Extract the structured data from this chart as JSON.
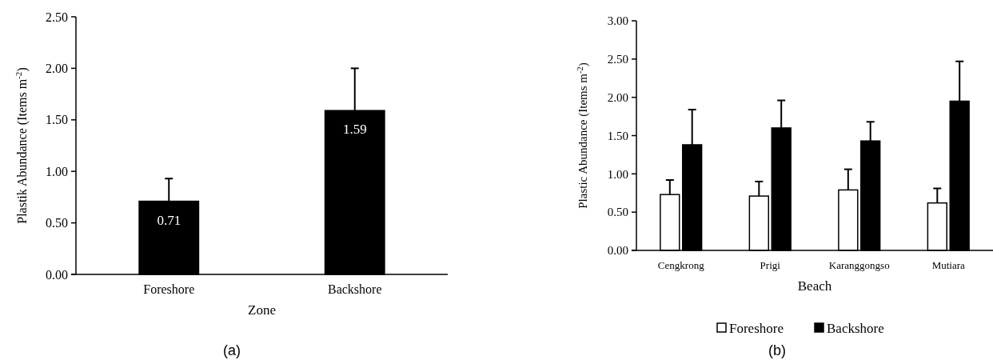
{
  "chart_data": [
    {
      "type": "bar",
      "title": "(a)",
      "xlabel": "Zone",
      "ylabel": "Plastik Abundance (Items m$^{-2}$)",
      "categories": [
        "Foreshore",
        "Backshore"
      ],
      "series": [
        {
          "color": "#000000",
          "values": [
            0.71,
            1.59
          ],
          "errors": [
            [
              0.71,
              0.93
            ],
            [
              1.59,
              2.0
            ]
          ]
        }
      ],
      "data_labels": true,
      "ylim": [
        0,
        2.5
      ],
      "yticks": [
        {
          "value": 0,
          "label": "0.00"
        },
        {
          "value": 0.5,
          "label": "0.50"
        },
        {
          "value": 1,
          "label": "1.00"
        },
        {
          "value": 1.5,
          "label": "1.50"
        },
        {
          "value": 2,
          "label": "2.00"
        },
        {
          "value": 2.5,
          "label": "2.50"
        }
      ],
      "grid": false,
      "legend": false
    },
    {
      "type": "bar",
      "title": "(b)",
      "xlabel": "Beach",
      "ylabel": "Plastic Abundance (Items m$^{-2}$)",
      "categories": [
        "Cengkrong",
        "Prigi",
        "Karanggongso",
        "Mutiara"
      ],
      "series": [
        {
          "name": "Foreshore",
          "color": "#ffffff",
          "values": [
            0.73,
            0.71,
            0.79,
            0.62
          ],
          "errors": [
            [
              0.73,
              0.92
            ],
            [
              0.71,
              0.9
            ],
            [
              0.79,
              1.06
            ],
            [
              0.62,
              0.81
            ]
          ]
        },
        {
          "name": "Backshore",
          "color": "#000000",
          "values": [
            1.38,
            1.6,
            1.43,
            1.95
          ],
          "errors": [
            [
              1.38,
              1.84
            ],
            [
              1.6,
              1.96
            ],
            [
              1.43,
              1.68
            ],
            [
              1.95,
              2.47
            ]
          ]
        }
      ],
      "ylim": [
        0,
        3
      ],
      "yticks": [
        {
          "value": 0,
          "label": "0.00"
        },
        {
          "value": 0.5,
          "label": "0.50"
        },
        {
          "value": 1,
          "label": "1.00"
        },
        {
          "value": 1.5,
          "label": "1.50"
        },
        {
          "value": 2,
          "label": "2.00"
        },
        {
          "value": 2.5,
          "label": "2.50"
        },
        {
          "value": 3,
          "label": "3.00"
        }
      ],
      "grid": false,
      "legend": "bottom"
    }
  ]
}
